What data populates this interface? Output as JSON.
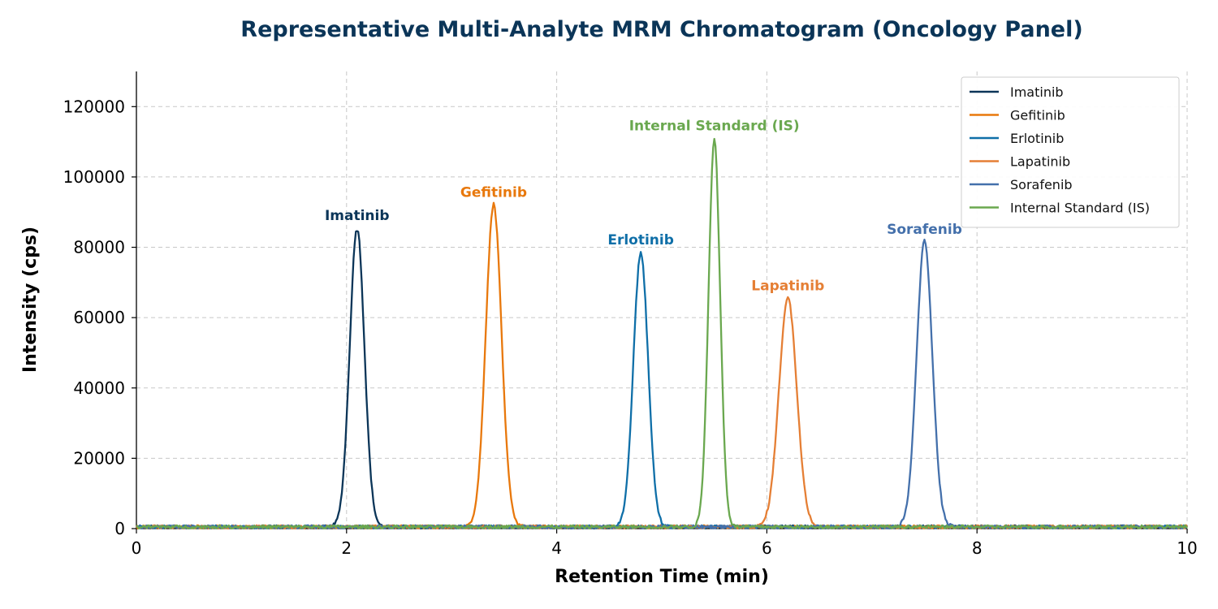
{
  "chart_data": {
    "type": "line",
    "title": "Representative Multi-Analyte MRM Chromatogram (Oncology Panel)",
    "xlabel": "Retention Time (min)",
    "ylabel": "Intensity (cps)",
    "xlim": [
      0,
      10
    ],
    "ylim": [
      0,
      130000
    ],
    "x_ticks": [
      "0",
      "2",
      "4",
      "6",
      "8",
      "10"
    ],
    "y_ticks": [
      "0",
      "20000",
      "40000",
      "60000",
      "80000",
      "100000",
      "120000"
    ],
    "grid": true,
    "legend_position": "top-right",
    "baseline_cps": 500,
    "series": [
      {
        "name": "Imatinib",
        "color": "#0b3558",
        "retention_time": 2.1,
        "peak_height": 85000,
        "peak_width_sigma": 0.07,
        "peak_label": "Imatinib"
      },
      {
        "name": "Gefitinib",
        "color": "#e8780c",
        "retention_time": 3.4,
        "peak_height": 91500,
        "peak_width_sigma": 0.075,
        "peak_label": "Gefitinib"
      },
      {
        "name": "Erlotinib",
        "color": "#0f6fa8",
        "retention_time": 4.8,
        "peak_height": 78000,
        "peak_width_sigma": 0.07,
        "peak_label": "Erlotinib"
      },
      {
        "name": "Lapatinib",
        "color": "#e57f35",
        "retention_time": 6.2,
        "peak_height": 65000,
        "peak_width_sigma": 0.085,
        "peak_label": "Lapatinib"
      },
      {
        "name": "Sorafenib",
        "color": "#4470ab",
        "retention_time": 7.5,
        "peak_height": 81000,
        "peak_width_sigma": 0.075,
        "peak_label": "Sorafenib"
      },
      {
        "name": "Internal Standard (IS)",
        "color": "#6aa84f",
        "retention_time": 5.5,
        "peak_height": 110500,
        "peak_width_sigma": 0.055,
        "peak_label": "Internal Standard (IS)"
      }
    ]
  }
}
